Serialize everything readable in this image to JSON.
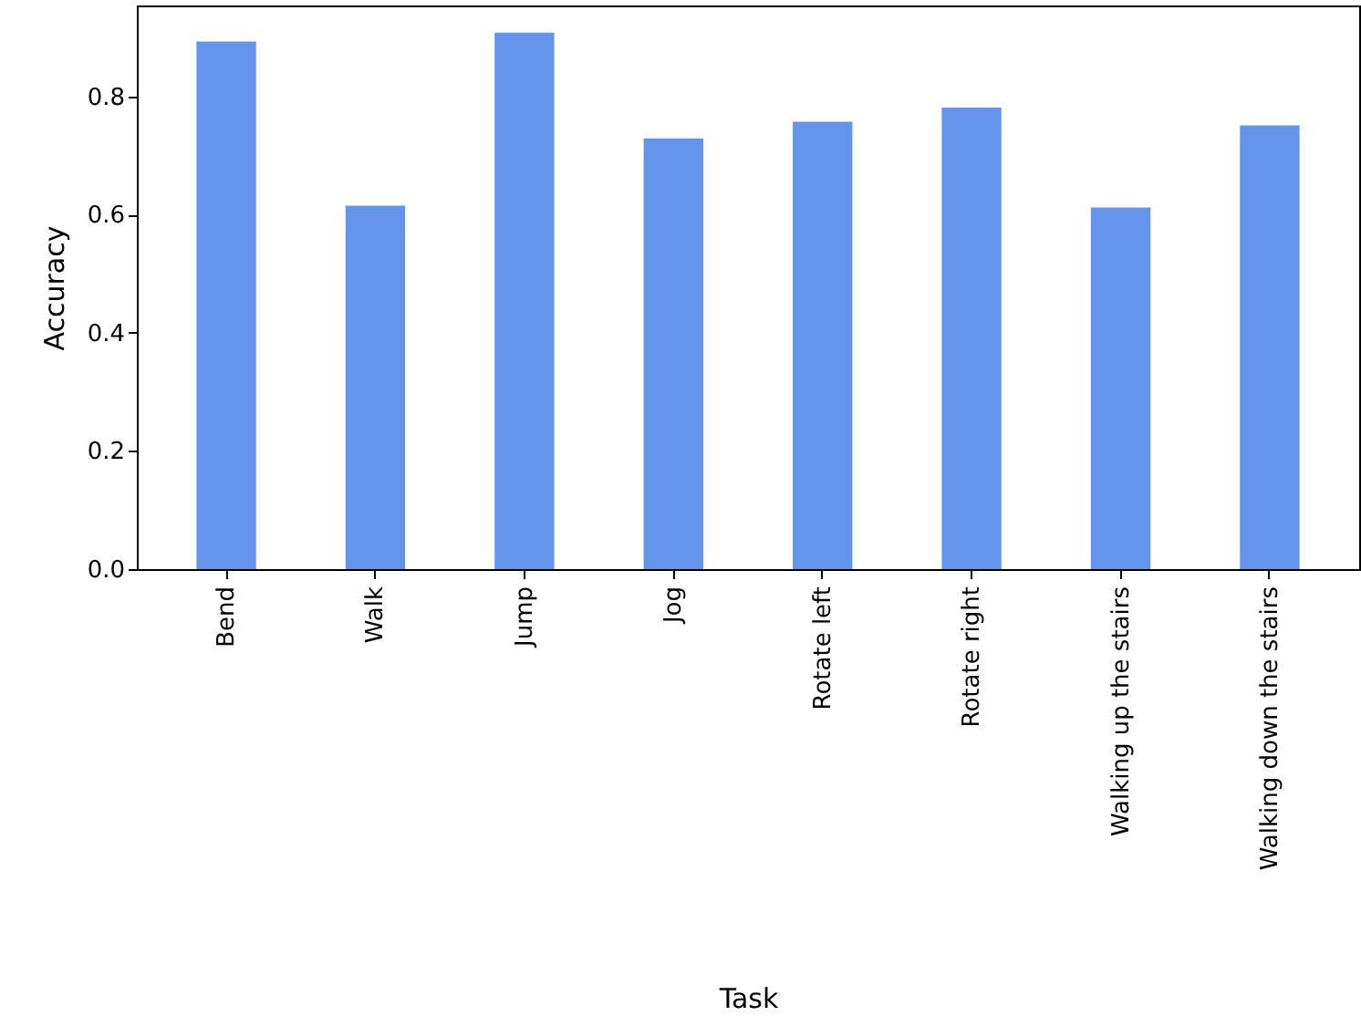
{
  "chart_data": {
    "type": "bar",
    "xlabel": "Task",
    "ylabel": "Accuracy",
    "categories": [
      "Bend",
      "Walk",
      "Jump",
      "Jog",
      "Rotate left",
      "Rotate right",
      "Walking up the stairs",
      "Walking down the stairs"
    ],
    "values": [
      0.893,
      0.615,
      0.908,
      0.729,
      0.757,
      0.781,
      0.612,
      0.751
    ],
    "color": "#6495ed",
    "ylim": [
      0,
      0.954
    ],
    "yticks": [
      {
        "value": 0,
        "label": "0.0"
      },
      {
        "value": 0.2,
        "label": "0.2"
      },
      {
        "value": 0.4,
        "label": "0.4"
      },
      {
        "value": 0.6,
        "label": "0.6"
      },
      {
        "value": 0.8,
        "label": "0.8"
      }
    ],
    "grid": false
  }
}
